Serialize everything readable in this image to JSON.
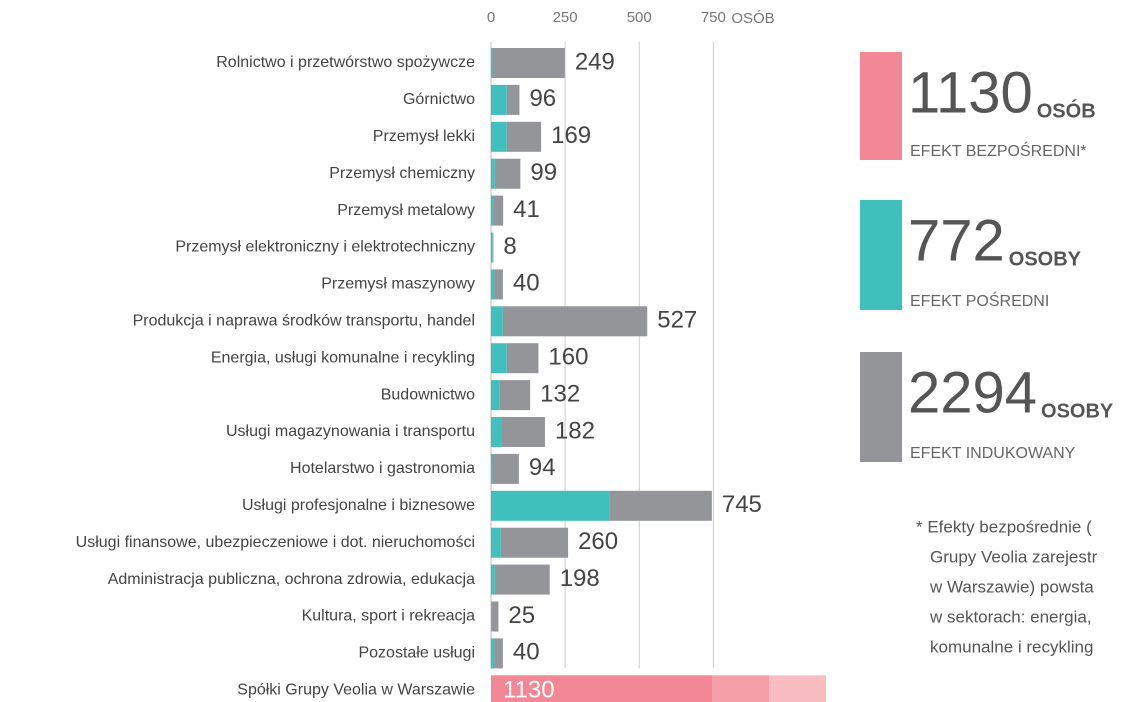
{
  "chart_data": {
    "type": "bar",
    "orientation": "horizontal",
    "stacked": true,
    "xlabel": "OSÓB",
    "xlim": [
      0,
      1130
    ],
    "xticks": [
      0,
      250,
      500,
      750
    ],
    "grid": true,
    "categories": [
      "Rolnictwo i przetwórstwo spożywcze",
      "Górnictwo",
      "Przemysł lekki",
      "Przemysł chemiczny",
      "Przemysł metalowy",
      "Przemysł elektroniczny i elektrotechniczny",
      "Przemysł maszynowy",
      "Produkcja i naprawa środków transportu, handel",
      "Energia, usługi komunalne i recykling",
      "Budownictwo",
      "Usługi magazynowania i transportu",
      "Hotelarstwo i gastronomia",
      "Usługi profesjonalne i biznesowe",
      "Usługi finansowe, ubezpieczeniowe i dot. nieruchomości",
      "Administracja publiczna, ochrona zdrowia, edukacja",
      "Kultura, sport i rekreacja",
      "Pozostałe usługi",
      "Spółki Grupy Veolia w Warszawie"
    ],
    "series": [
      {
        "name": "EFEKT BEZPOŚREDNI*",
        "color": "#f28795",
        "values": [
          null,
          null,
          null,
          null,
          null,
          null,
          null,
          null,
          null,
          null,
          null,
          null,
          null,
          null,
          null,
          null,
          null,
          1130
        ]
      },
      {
        "name": "EFEKT POŚREDNI",
        "color": "#40c0bd",
        "values": [
          5,
          53,
          53,
          13,
          7,
          6,
          12,
          40,
          53,
          30,
          37,
          5,
          400,
          33,
          13,
          3,
          12,
          null
        ]
      },
      {
        "name": "EFEKT INDUKOWANY",
        "color": "#939598",
        "values": [
          244,
          43,
          116,
          86,
          34,
          2,
          28,
          487,
          107,
          102,
          145,
          89,
          345,
          227,
          185,
          22,
          28,
          null
        ]
      }
    ],
    "totals": [
      249,
      96,
      169,
      99,
      41,
      8,
      40,
      527,
      160,
      132,
      182,
      94,
      745,
      260,
      198,
      25,
      40,
      1130
    ],
    "legend_totals": [
      1130,
      772,
      2294
    ],
    "legend_units": [
      "OSÓB",
      "OSOBY",
      "OSOBY"
    ],
    "footnote": [
      "* Efekty bezpośrednie (",
      "Grupy Veolia zarejestr",
      "w Warszawie) powsta",
      "w sektorach: energia,",
      "komunalne i recykling"
    ]
  }
}
